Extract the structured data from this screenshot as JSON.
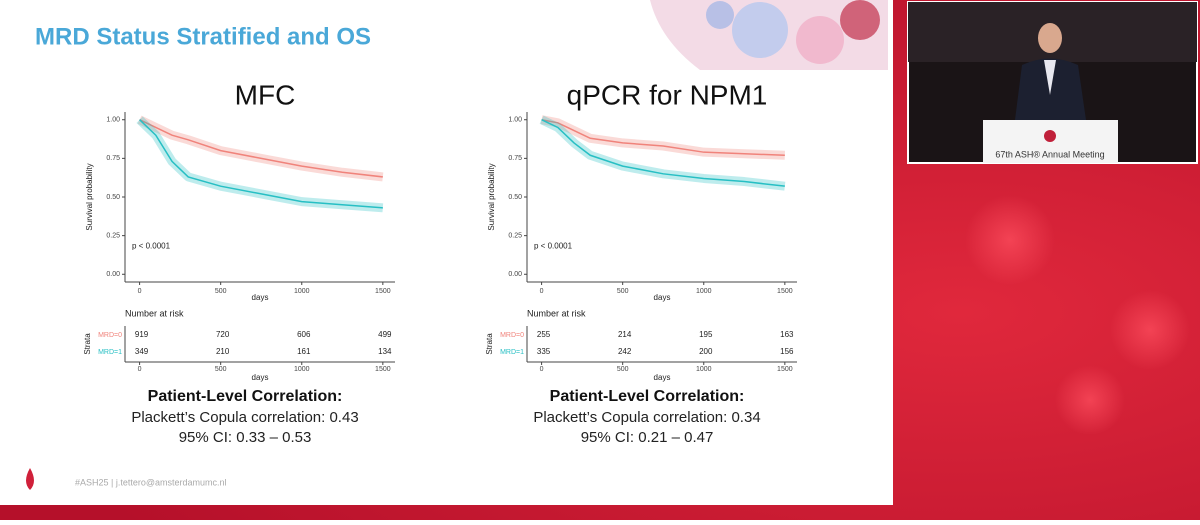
{
  "slide": {
    "title": "MRD Status Stratified and OS",
    "footer": "#ASH25 | j.tettero@amsterdamumc.nl",
    "video_caption": "67th ASH® Annual Meeting"
  },
  "chart_data": [
    {
      "type": "line",
      "title": "MFC",
      "xlabel": "days",
      "ylabel": "Survival probability",
      "annotation": "p < 0.0001",
      "x": [
        0,
        100,
        200,
        300,
        500,
        750,
        1000,
        1250,
        1500
      ],
      "series": [
        {
          "name": "MRD=0",
          "color": "#f0837b",
          "values": [
            1.0,
            0.95,
            0.9,
            0.87,
            0.8,
            0.75,
            0.7,
            0.66,
            0.63
          ],
          "at_risk": [
            919,
            720,
            606,
            499
          ]
        },
        {
          "name": "MRD=1",
          "color": "#27bfc4",
          "values": [
            1.0,
            0.9,
            0.73,
            0.63,
            0.57,
            0.52,
            0.47,
            0.45,
            0.43
          ],
          "at_risk": [
            349,
            210,
            161,
            134
          ]
        }
      ],
      "risk_title": "Number at risk",
      "risk_ylabel": "Strata",
      "xlim": [
        -90,
        1575
      ],
      "ylim": [
        -0.05,
        1.05
      ],
      "xticks": [
        0,
        500,
        1000,
        1500
      ],
      "yticks": [
        {
          "value": 0,
          "label": "0.00"
        },
        {
          "value": 0.25,
          "label": "0.25"
        },
        {
          "value": 0.5,
          "label": "0.50"
        },
        {
          "value": 0.75,
          "label": "0.75"
        },
        {
          "value": 1,
          "label": "1.00"
        }
      ],
      "correlation": {
        "heading": "Patient-Level Correlation:",
        "text": "Plackett’s Copula correlation: 0.43",
        "ci": "95% CI: 0.33 – 0.53"
      }
    },
    {
      "type": "line",
      "title": "qPCR for NPM1",
      "xlabel": "days",
      "ylabel": "Survival probability",
      "annotation": "p < 0.0001",
      "x": [
        0,
        100,
        200,
        300,
        500,
        750,
        1000,
        1250,
        1500
      ],
      "series": [
        {
          "name": "MRD=0",
          "color": "#f0837b",
          "values": [
            1.0,
            0.98,
            0.93,
            0.88,
            0.85,
            0.83,
            0.79,
            0.78,
            0.77
          ],
          "at_risk": [
            255,
            214,
            195,
            163
          ]
        },
        {
          "name": "MRD=1",
          "color": "#27bfc4",
          "values": [
            1.0,
            0.95,
            0.85,
            0.77,
            0.7,
            0.65,
            0.62,
            0.6,
            0.57
          ],
          "at_risk": [
            335,
            242,
            200,
            156
          ]
        }
      ],
      "risk_title": "Number at risk",
      "risk_ylabel": "Strata",
      "xlim": [
        -90,
        1575
      ],
      "ylim": [
        -0.05,
        1.05
      ],
      "xticks": [
        0,
        500,
        1000,
        1500
      ],
      "yticks": [
        {
          "value": 0,
          "label": "0.00"
        },
        {
          "value": 0.25,
          "label": "0.25"
        },
        {
          "value": 0.5,
          "label": "0.50"
        },
        {
          "value": 0.75,
          "label": "0.75"
        },
        {
          "value": 1,
          "label": "1.00"
        }
      ],
      "correlation": {
        "heading": "Patient-Level Correlation:",
        "text": "Plackett’s Copula correlation: 0.34",
        "ci": "95% CI: 0.21 – 0.47"
      }
    }
  ]
}
